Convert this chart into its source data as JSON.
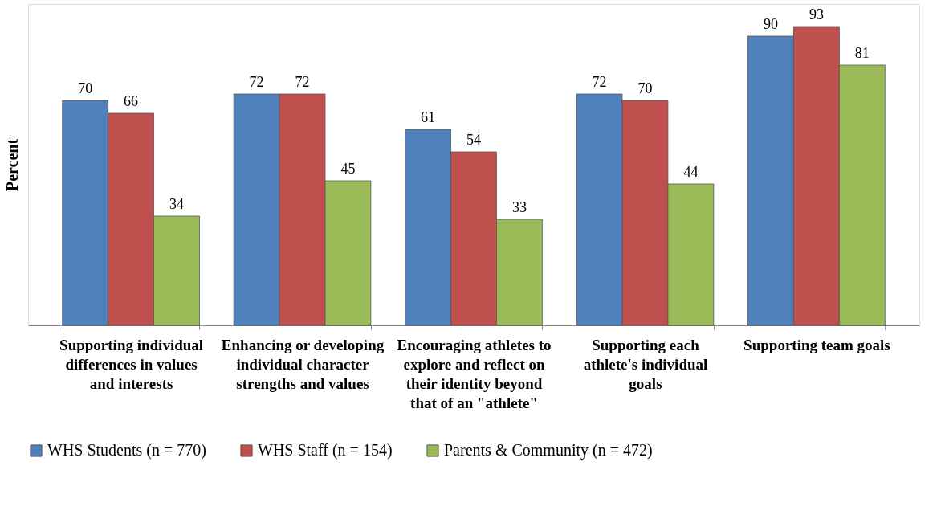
{
  "chart_data": {
    "type": "bar",
    "ylabel": "Percent",
    "categories": [
      "Supporting individual differences in values and interests",
      "Enhancing or developing individual character strengths and values",
      "Encouraging athletes to explore and reflect on their identity beyond that of an \"athlete\"",
      "Supporting each athlete's individual goals",
      "Supporting team goals"
    ],
    "series": [
      {
        "name": "WHS Students (n = 770)",
        "color": "#4f81bd",
        "values": [
          70,
          72,
          61,
          72,
          90
        ]
      },
      {
        "name": "WHS Staff (n = 154)",
        "color": "#c0504d",
        "values": [
          66,
          72,
          54,
          70,
          93
        ]
      },
      {
        "name": "Parents & Community (n = 472)",
        "color": "#9bbb59",
        "values": [
          34,
          45,
          33,
          44,
          81
        ]
      }
    ],
    "ylim": [
      0,
      100
    ],
    "data_labels": true,
    "legend": "bottom",
    "grid": false,
    "tick_labels": "x"
  }
}
